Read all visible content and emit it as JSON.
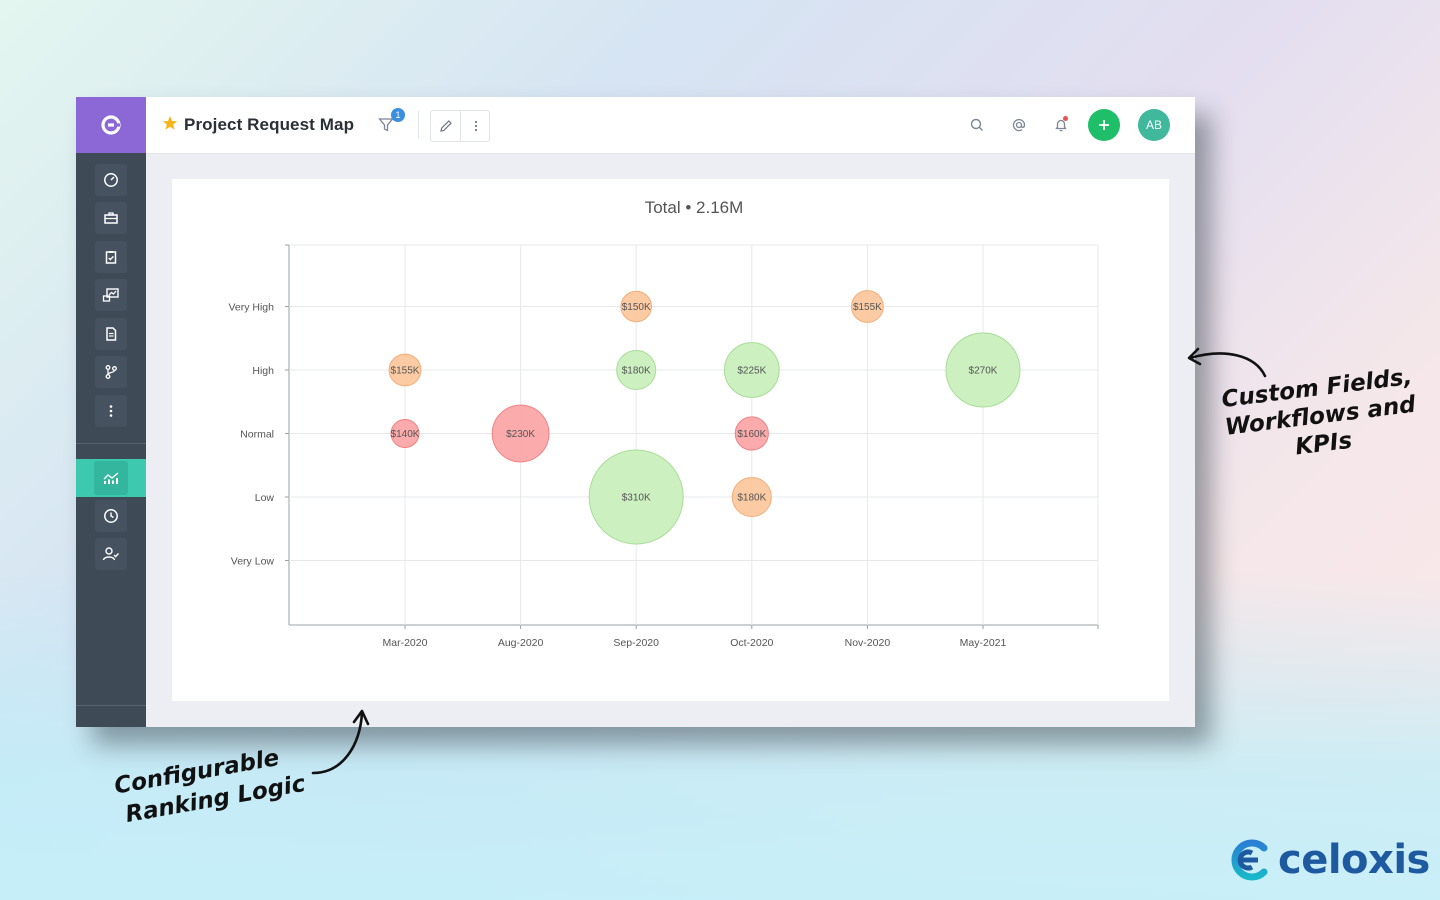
{
  "app": {
    "title": "Project Request Map",
    "filter_badge": "1",
    "avatar_initials": "AB",
    "accent_color": "#8c68d6",
    "active_color": "#3cc9b0"
  },
  "sidebar": {
    "items": [
      {
        "icon": "dashboard-gauge-icon"
      },
      {
        "icon": "briefcase-icon"
      },
      {
        "icon": "clipboard-check-icon"
      },
      {
        "icon": "report-chart-icon"
      },
      {
        "icon": "document-icon"
      },
      {
        "icon": "workflow-branch-icon"
      },
      {
        "icon": "more-vertical-icon"
      },
      {
        "icon": "analytics-chart-icon",
        "active": true
      },
      {
        "icon": "clock-icon"
      },
      {
        "icon": "user-check-icon"
      }
    ]
  },
  "toolbar": {
    "icons": [
      "search-icon",
      "mention-icon",
      "bell-icon",
      "add-icon"
    ]
  },
  "annotations": {
    "right_line1": "Custom Fields,",
    "right_line2": "Workflows and",
    "right_line3": "KPIs",
    "left_line1": "Configurable",
    "left_line2": "Ranking Logic"
  },
  "brand": {
    "name": "celoxis",
    "color": "#1e5aa0"
  },
  "chart_data": {
    "type": "bubble",
    "title": "Total • 2.16M",
    "x_categories": [
      "Mar-2020",
      "Aug-2020",
      "Sep-2020",
      "Oct-2020",
      "Nov-2020",
      "May-2021"
    ],
    "y_categories": [
      "Very Low",
      "Low",
      "Normal",
      "High",
      "Very High"
    ],
    "grid": true,
    "points": [
      {
        "x": "Sep-2020",
        "y": "Very High",
        "value": 150,
        "label": "$150K",
        "color": "orange"
      },
      {
        "x": "Nov-2020",
        "y": "Very High",
        "value": 155,
        "label": "$155K",
        "color": "orange"
      },
      {
        "x": "Mar-2020",
        "y": "High",
        "value": 155,
        "label": "$155K",
        "color": "orange"
      },
      {
        "x": "Sep-2020",
        "y": "High",
        "value": 180,
        "label": "$180K",
        "color": "green"
      },
      {
        "x": "Oct-2020",
        "y": "High",
        "value": 225,
        "label": "$225K",
        "color": "green"
      },
      {
        "x": "May-2021",
        "y": "High",
        "value": 270,
        "label": "$270K",
        "color": "green"
      },
      {
        "x": "Mar-2020",
        "y": "Normal",
        "value": 140,
        "label": "$140K",
        "color": "red"
      },
      {
        "x": "Aug-2020",
        "y": "Normal",
        "value": 230,
        "label": "$230K",
        "color": "red"
      },
      {
        "x": "Oct-2020",
        "y": "Normal",
        "value": 160,
        "label": "$160K",
        "color": "red"
      },
      {
        "x": "Sep-2020",
        "y": "Low",
        "value": 310,
        "label": "$310K",
        "color": "green"
      },
      {
        "x": "Oct-2020",
        "y": "Low",
        "value": 180,
        "label": "$180K",
        "color": "orange"
      }
    ],
    "colors": {
      "orange": {
        "fill": "#fcc89e",
        "stroke": "#f4ad78"
      },
      "green": {
        "fill": "#c9efbd",
        "stroke": "#a8dd97"
      },
      "red": {
        "fill": "#fba7a8",
        "stroke": "#f08183"
      }
    }
  }
}
